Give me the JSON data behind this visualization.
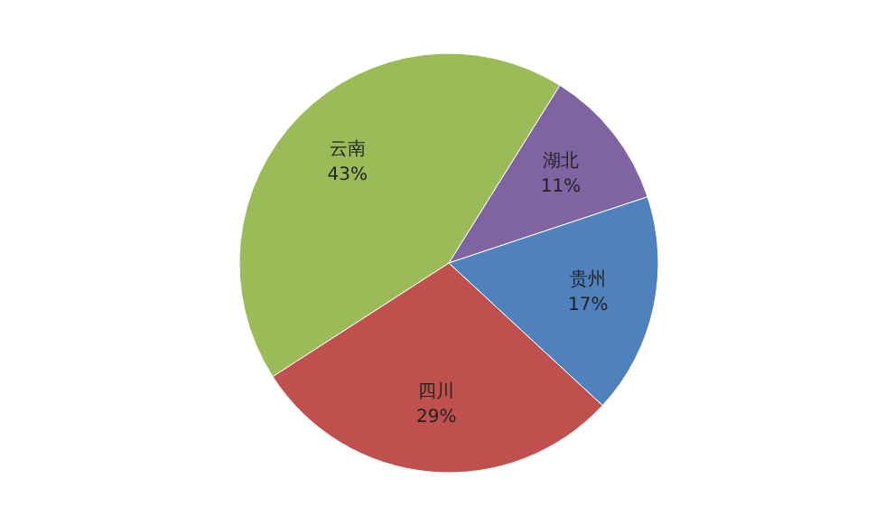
{
  "chart_data": {
    "type": "pie",
    "categories": [
      "湖北",
      "贵州",
      "四川",
      "云南"
    ],
    "values": [
      11,
      17,
      29,
      43
    ],
    "colors": [
      "#8064a2",
      "#4f81bd",
      "#c0504d",
      "#9bbb59"
    ],
    "value_labels": [
      "11%",
      "17%",
      "29%",
      "43%"
    ]
  }
}
